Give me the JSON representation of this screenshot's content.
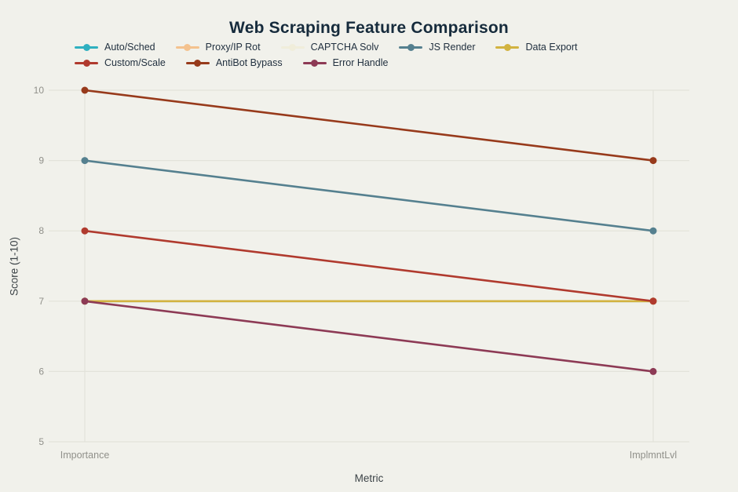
{
  "title": "Web Scraping Feature Comparison",
  "chart_data": {
    "type": "line",
    "categories": [
      "Importance",
      "ImplmntLvl"
    ],
    "series": [
      {
        "name": "Auto/Sched",
        "color": "#2FB0C0",
        "values": [
          7,
          7
        ]
      },
      {
        "name": "Proxy/IP Rot",
        "color": "#F4C28E",
        "values": [
          7,
          7
        ]
      },
      {
        "name": "CAPTCHA Solv",
        "color": "#F0EDDA",
        "values": [
          7,
          7
        ]
      },
      {
        "name": "JS Render",
        "color": "#55808F",
        "values": [
          9,
          8
        ]
      },
      {
        "name": "Data Export",
        "color": "#D2B340",
        "values": [
          7,
          7
        ]
      },
      {
        "name": "Custom/Scale",
        "color": "#B03A2E",
        "values": [
          8,
          7
        ]
      },
      {
        "name": "AntiBot Bypass",
        "color": "#973A1B",
        "values": [
          10,
          9
        ]
      },
      {
        "name": "Error Handle",
        "color": "#8D3A55",
        "values": [
          7,
          6
        ]
      }
    ],
    "xlabel": "Metric",
    "ylabel": "Score (1-10)",
    "yticks": [
      5,
      6,
      7,
      8,
      9,
      10
    ],
    "ylim": [
      5,
      10
    ],
    "grid": true,
    "legend_position": "top"
  },
  "colors": {
    "background": "#F1F1EB",
    "grid": "#E3E3DA",
    "title_text": "#162B3C",
    "tick_text": "#90908A",
    "axis_title_text": "#3C4347"
  }
}
